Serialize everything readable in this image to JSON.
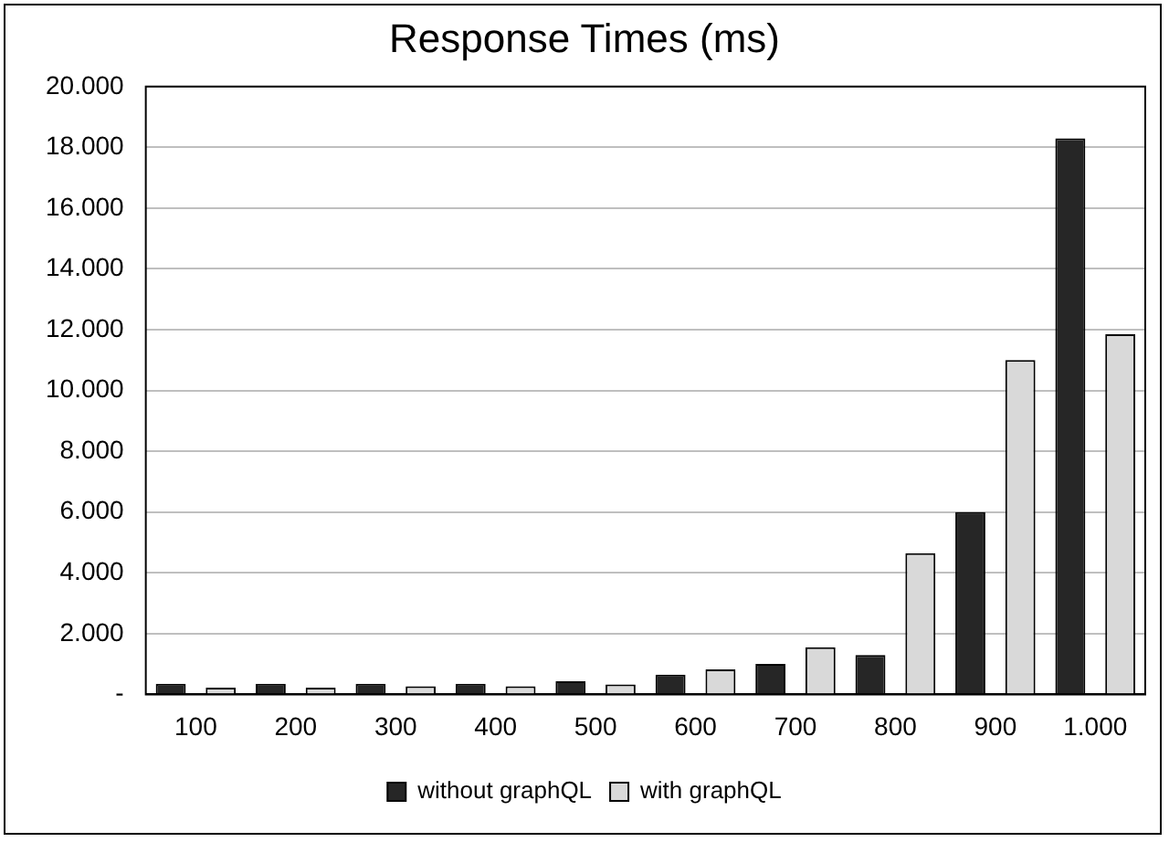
{
  "chart_data": {
    "type": "bar",
    "title": "Response Times (ms)",
    "categories": [
      "100",
      "200",
      "300",
      "400",
      "500",
      "600",
      "700",
      "800",
      "900",
      "1.000"
    ],
    "series": [
      {
        "name": "without graphQL",
        "color": "#262626",
        "values": [
          350,
          350,
          350,
          350,
          430,
          650,
          1000,
          1300,
          6000,
          18300
        ]
      },
      {
        "name": "with graphQL",
        "color": "#d9d9d9",
        "values": [
          220,
          220,
          270,
          270,
          330,
          820,
          1550,
          4650,
          11000,
          11850
        ]
      }
    ],
    "ylim": [
      0,
      20000
    ],
    "yticks": [
      {
        "value": 0,
        "label": "-"
      },
      {
        "value": 2000,
        "label": "2.000"
      },
      {
        "value": 4000,
        "label": "4.000"
      },
      {
        "value": 6000,
        "label": "6.000"
      },
      {
        "value": 8000,
        "label": "8.000"
      },
      {
        "value": 10000,
        "label": "10.000"
      },
      {
        "value": 12000,
        "label": "12.000"
      },
      {
        "value": 14000,
        "label": "14.000"
      },
      {
        "value": 16000,
        "label": "16.000"
      },
      {
        "value": 18000,
        "label": "18.000"
      },
      {
        "value": 20000,
        "label": "20.000"
      }
    ],
    "grid": "y",
    "legend": "bottom"
  }
}
